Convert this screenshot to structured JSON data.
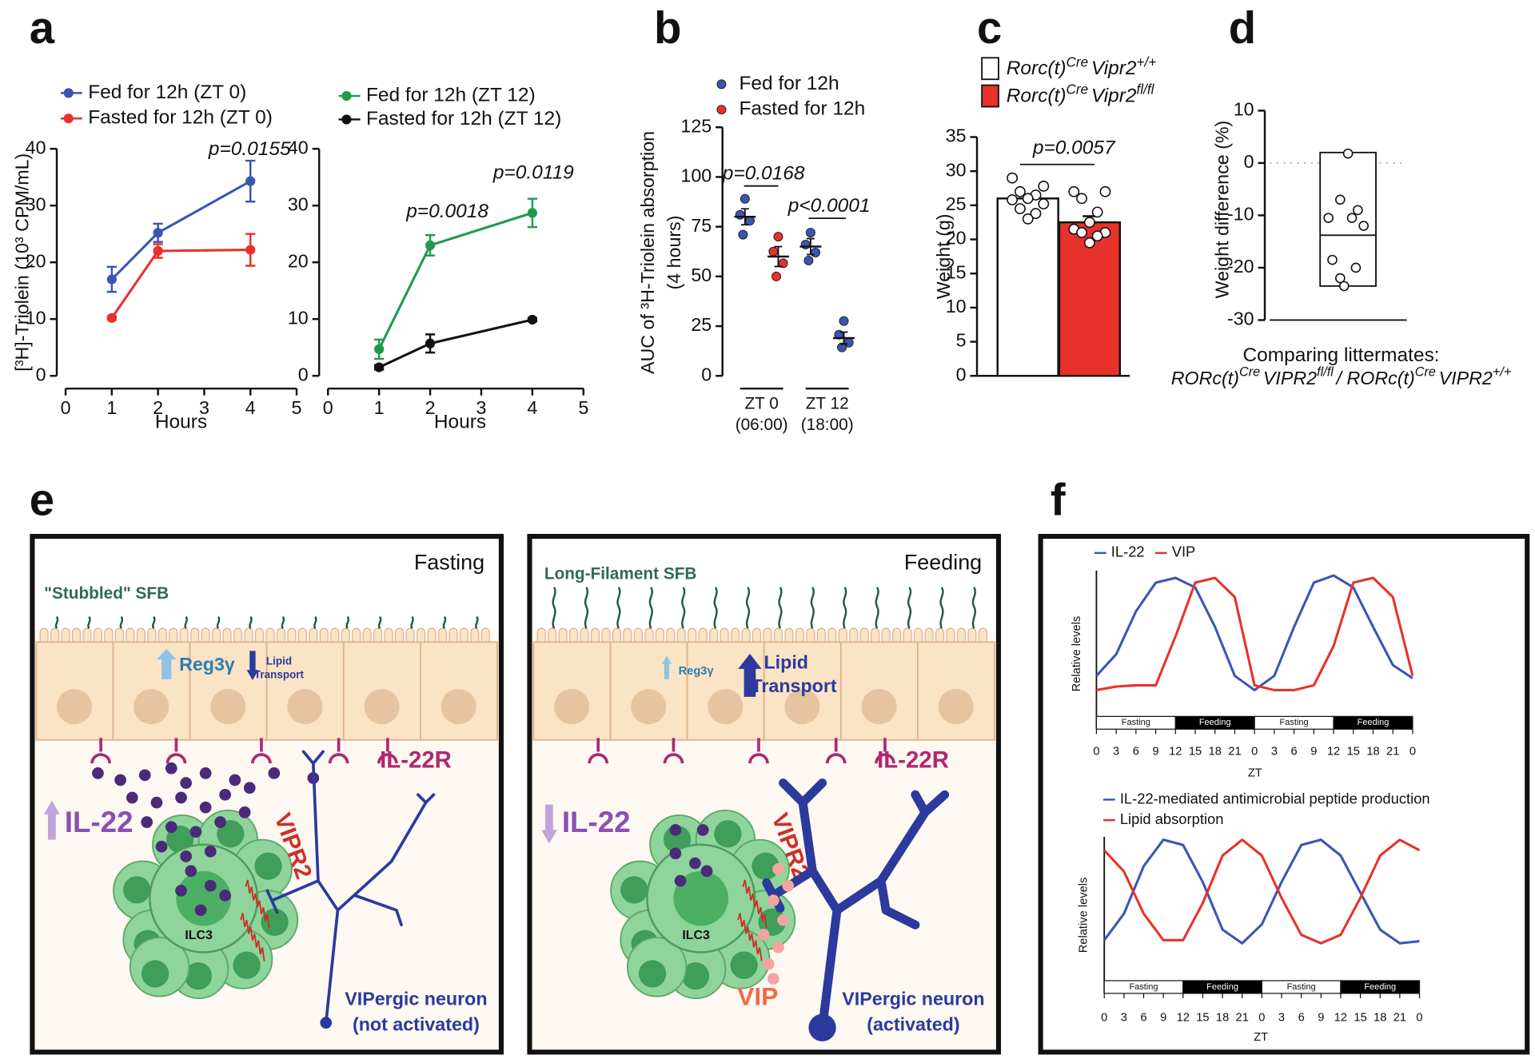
{
  "chart_data": [
    {
      "type": "line",
      "panel": "a",
      "ylabel": "[³H]-Triolein (10³ CPM/mL)",
      "xlabel": "Hours",
      "xlim": [
        0,
        5
      ],
      "xticks": [
        0,
        1,
        2,
        3,
        4,
        5
      ],
      "ylim": [
        0,
        40
      ],
      "yticks": [
        0,
        10,
        20,
        30,
        40
      ],
      "x": [
        1,
        2,
        4
      ],
      "series": [
        {
          "name": "Fed for 12h (ZT 0)",
          "color": "#3a55b4",
          "values": [
            17,
            25.2,
            34.3
          ],
          "errors": [
            2.2,
            1.6,
            3.6
          ]
        },
        {
          "name": "Fasted for 12h (ZT 0)",
          "color": "#e8312a",
          "values": [
            10.2,
            22,
            22.2
          ],
          "errors": [
            0.3,
            1.2,
            2.8
          ]
        }
      ],
      "annotations": [
        "p=0.0155"
      ]
    },
    {
      "type": "line",
      "xlabel": "Hours",
      "xlim": [
        0,
        5
      ],
      "xticks": [
        0,
        1,
        2,
        3,
        4,
        5
      ],
      "ylim": [
        0,
        40
      ],
      "yticks": [
        0,
        10,
        20,
        30,
        40
      ],
      "x": [
        1,
        2,
        4
      ],
      "series": [
        {
          "name": "Fed for 12h (ZT 12)",
          "color": "#1f9a4a",
          "values": [
            4.7,
            23,
            28.7
          ],
          "errors": [
            1.7,
            1.8,
            2.5
          ]
        },
        {
          "name": "Fasted for 12h (ZT 12)",
          "color": "#111111",
          "values": [
            1.5,
            5.7,
            9.9
          ],
          "errors": [
            0.4,
            1.6,
            0.3
          ]
        }
      ],
      "annotations": [
        "p=0.0018",
        "p=0.0119"
      ]
    },
    {
      "type": "dotplot",
      "panel": "b",
      "ylabel": [
        "AUC of ³H-Triolein absorption",
        "(4 hours)"
      ],
      "ylim": [
        0,
        125
      ],
      "yticks": [
        0,
        25,
        50,
        75,
        100,
        125
      ],
      "categories": [
        [
          "ZT 0",
          "(06:00)"
        ],
        [
          "ZT 12",
          "(18:00)"
        ]
      ],
      "series": [
        {
          "name": "Fed for 12h",
          "color": "#3a55b4",
          "points": [
            [
              89,
              81,
              78,
              71
            ],
            [
              72,
              66,
              62,
              58
            ]
          ],
          "means": [
            80,
            65
          ],
          "errors": [
            4,
            4
          ]
        },
        {
          "name": "Fasted for 12h",
          "color": "#e8312a",
          "point_colors": [
            "#e8312a",
            "#3a55b4"
          ],
          "points": [
            [
              70,
              62.5,
              56.6,
              50
            ],
            [
              27.6,
              20.7,
              16.7,
              14.3
            ]
          ],
          "means": [
            60,
            19
          ],
          "errors": [
            5,
            3
          ]
        }
      ],
      "annotations": [
        "p=0.0168",
        "p<0.0001"
      ]
    },
    {
      "type": "bar",
      "panel": "c",
      "ylabel": "Weight (g)",
      "ylim": [
        0,
        35
      ],
      "yticks": [
        0,
        5,
        10,
        15,
        20,
        25,
        30,
        35
      ],
      "series": [
        {
          "name": [
            "Rorc(t)",
            "Cre",
            "Vipr2",
            "+/+"
          ],
          "color": "#ffffff",
          "value": 26,
          "error": 0.6,
          "points": [
            29,
            27.8,
            27,
            26.5,
            26,
            25.8,
            25.2,
            24.5,
            23.8,
            23
          ]
        },
        {
          "name": [
            "Rorc(t)",
            "Cre",
            "Vipr2",
            "fl/fl"
          ],
          "color": "#e8312a",
          "value": 22.5,
          "error": 0.9,
          "points": [
            27,
            27,
            26,
            24,
            22.5,
            21.5,
            21,
            21,
            20.5,
            19.5
          ]
        }
      ],
      "annotations": [
        "p=0.0057"
      ]
    },
    {
      "type": "range",
      "panel": "d",
      "ylabel": "Weight difference (%)",
      "ylim": [
        -30,
        10
      ],
      "yticks": [
        -30,
        -20,
        -10,
        0,
        10
      ],
      "range": [
        2,
        -23.5
      ],
      "mean": -13.8,
      "points": [
        1.8,
        -7,
        -9,
        -10.5,
        -10.5,
        -12,
        -18.5,
        -20,
        -22,
        -23.5
      ],
      "reference": 0,
      "caption": [
        "Comparing littermates:",
        [
          "RORc(t)",
          "Cre",
          "VIPR2",
          "fl/fl",
          "/ RORc(t)",
          "Cre",
          "VIPR2",
          "+/+"
        ]
      ]
    },
    {
      "type": "line",
      "panel": "f",
      "ylabel": "Relative levels",
      "xlabel": "ZT",
      "xlim": [
        0,
        48
      ],
      "ylim": [
        0,
        1
      ],
      "xticks": [
        0,
        3,
        6,
        9,
        12,
        15,
        18,
        21,
        {
          "value": 24,
          "label": "0"
        },
        {
          "value": 27,
          "label": "3"
        },
        {
          "value": 30,
          "label": "6"
        },
        {
          "value": 33,
          "label": "9"
        },
        {
          "value": 36,
          "label": "12"
        },
        {
          "value": 39,
          "label": "15"
        },
        {
          "value": 42,
          "label": "18"
        },
        {
          "value": 45,
          "label": "21"
        },
        {
          "value": 48,
          "label": "0"
        }
      ],
      "x": [
        0,
        3,
        6,
        9,
        12,
        15,
        18,
        21,
        24,
        27,
        30,
        33,
        36,
        39,
        42,
        45,
        48
      ],
      "periods": [
        {
          "label": "Fasting",
          "start": 0,
          "end": 12,
          "color": "#ffffff"
        },
        {
          "label": "Feeding",
          "start": 12,
          "end": 24,
          "color": "#000000"
        },
        {
          "label": "Fasting",
          "start": 24,
          "end": 36,
          "color": "#ffffff"
        },
        {
          "label": "Feeding",
          "start": 36,
          "end": 48,
          "color": "#000000"
        }
      ],
      "series": [
        {
          "name": "IL-22",
          "color": "#3a55b4",
          "values": [
            0.16,
            0.34,
            0.7,
            0.94,
            0.98,
            0.9,
            0.57,
            0.16,
            0.04,
            0.16,
            0.57,
            0.94,
            1.0,
            0.9,
            0.57,
            0.25,
            0.14
          ]
        },
        {
          "name": "VIP",
          "color": "#e8312a",
          "values": [
            0.04,
            0.07,
            0.08,
            0.08,
            0.49,
            0.94,
            0.98,
            0.82,
            0.08,
            0.04,
            0.04,
            0.08,
            0.41,
            0.94,
            0.98,
            0.82,
            0.16
          ]
        }
      ]
    },
    {
      "type": "line",
      "ylabel": "Relative levels",
      "xlabel": "ZT",
      "xlim": [
        0,
        48
      ],
      "ylim": [
        0,
        1
      ],
      "xticks": [
        0,
        3,
        6,
        9,
        12,
        15,
        18,
        21,
        {
          "value": 24,
          "label": "0"
        },
        {
          "value": 27,
          "label": "3"
        },
        {
          "value": 30,
          "label": "6"
        },
        {
          "value": 33,
          "label": "9"
        },
        {
          "value": 36,
          "label": "12"
        },
        {
          "value": 39,
          "label": "15"
        },
        {
          "value": 42,
          "label": "18"
        },
        {
          "value": 45,
          "label": "21"
        },
        {
          "value": 48,
          "label": "0"
        }
      ],
      "x": [
        0,
        3,
        6,
        9,
        12,
        15,
        18,
        21,
        24,
        27,
        30,
        33,
        36,
        39,
        42,
        45,
        48
      ],
      "periods": [
        {
          "label": "Fasting",
          "start": 0,
          "end": 12,
          "color": "#ffffff"
        },
        {
          "label": "Feeding",
          "start": 12,
          "end": 24,
          "color": "#000000"
        },
        {
          "label": "Fasting",
          "start": 24,
          "end": 36,
          "color": "#ffffff"
        },
        {
          "label": "Feeding",
          "start": 36,
          "end": 48,
          "color": "#000000"
        }
      ],
      "series": [
        {
          "name": "IL-22-mediated antimicrobial peptide production",
          "color": "#3a55b4",
          "values": [
            0.05,
            0.3,
            0.75,
            1.0,
            0.95,
            0.6,
            0.15,
            0.02,
            0.2,
            0.6,
            0.95,
            1.0,
            0.85,
            0.5,
            0.15,
            0.02,
            0.04
          ]
        },
        {
          "name": "Lipid absorption",
          "color": "#e8312a",
          "values": [
            0.9,
            0.7,
            0.3,
            0.05,
            0.05,
            0.4,
            0.85,
            1.0,
            0.85,
            0.45,
            0.1,
            0.02,
            0.1,
            0.45,
            0.85,
            1.0,
            0.9
          ]
        }
      ]
    }
  ],
  "diagram": {
    "panel": "e",
    "fasting": {
      "title": "Fasting",
      "sfb": "\"Stubbled\" SFB",
      "reg3g": "Reg3γ",
      "lipid": [
        "Lipid",
        "Transport"
      ],
      "receptor": "IL-22R",
      "il22": "IL-22",
      "vipr2": "VIPR2",
      "ilc3": "ILC3",
      "neuron": [
        "VIPergic neuron",
        "(not activated)"
      ]
    },
    "feeding": {
      "title": "Feeding",
      "sfb": "Long-Filament SFB",
      "reg3g": "Reg3γ",
      "lipid": [
        "Lipid",
        "Transport"
      ],
      "receptor": "IL-22R",
      "il22": "IL-22",
      "vipr2": "VIPR2",
      "ilc3": "ILC3",
      "vip": "VIP",
      "neuron": [
        "VIPergic neuron",
        "(activated)"
      ]
    }
  }
}
